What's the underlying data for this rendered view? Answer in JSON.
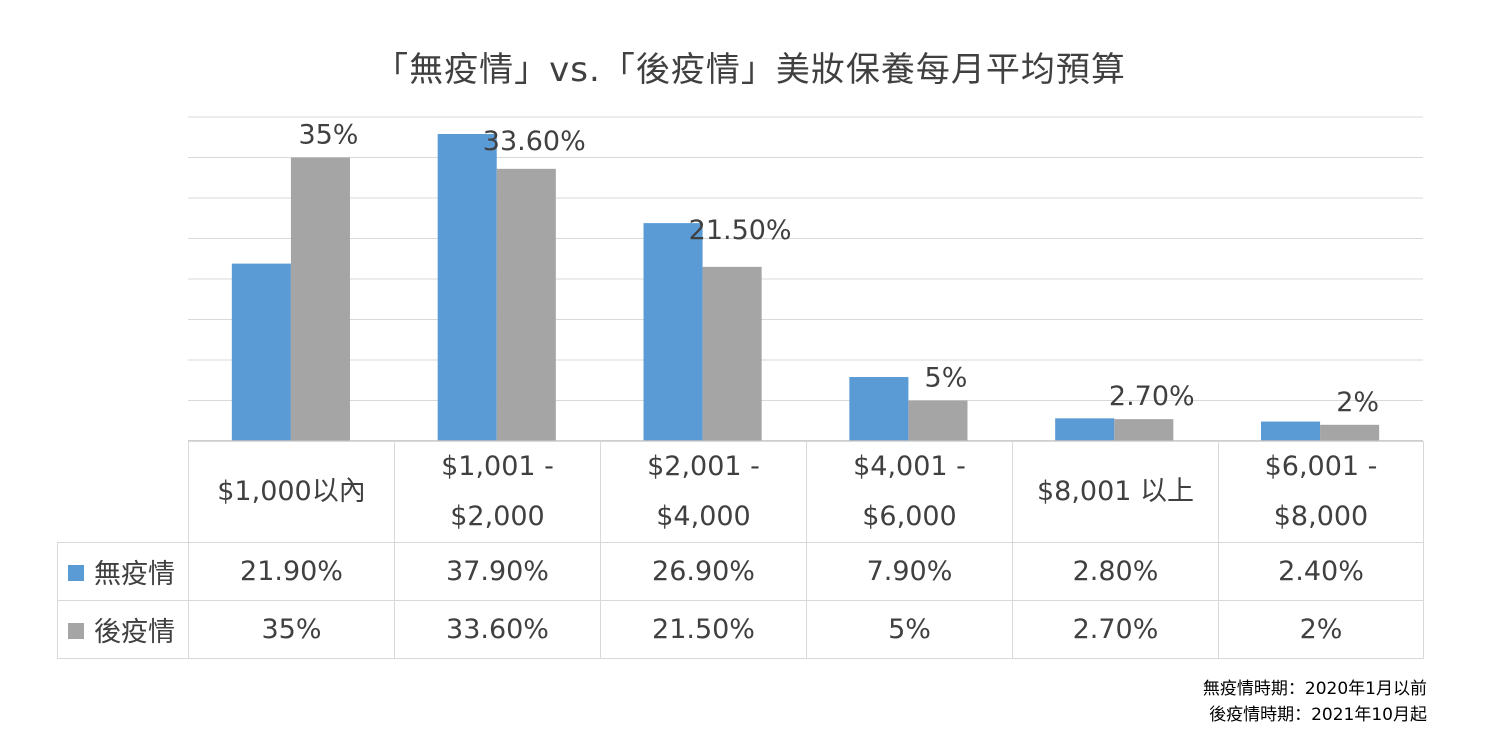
{
  "chart_data": {
    "type": "bar",
    "title": "「無疫情」vs.「後疫情」美妝保養每月平均預算",
    "categories": [
      "$1,000以內",
      "$1,001 -\n$2,000",
      "$2,001 -\n$4,000",
      "$4,001 -\n$6,000",
      "$8,001 以上",
      "$6,001 -\n$8,000"
    ],
    "series": [
      {
        "name": "無疫情",
        "color": "#5b9bd5",
        "values": [
          21.9,
          37.9,
          26.9,
          7.9,
          2.8,
          2.4
        ],
        "table_labels": [
          "21.90%",
          "37.90%",
          "26.90%",
          "7.90%",
          "2.80%",
          "2.40%"
        ]
      },
      {
        "name": "後疫情",
        "color": "#a5a5a5",
        "values": [
          35,
          33.6,
          21.5,
          5,
          2.7,
          2
        ],
        "table_labels": [
          "35%",
          "33.60%",
          "21.50%",
          "5%",
          "2.70%",
          "2%"
        ],
        "data_labels": [
          "35%",
          "33.60%",
          "21.50%",
          "5%",
          "2.70%",
          "2%"
        ]
      }
    ],
    "ylim": [
      0,
      40
    ],
    "grid": true,
    "legend": "data-table",
    "y_tick_labels_shown": false
  },
  "footnote": {
    "line1": "無疫情時期：2020年1月以前",
    "line2": "後疫情時期：2021年10月起"
  }
}
